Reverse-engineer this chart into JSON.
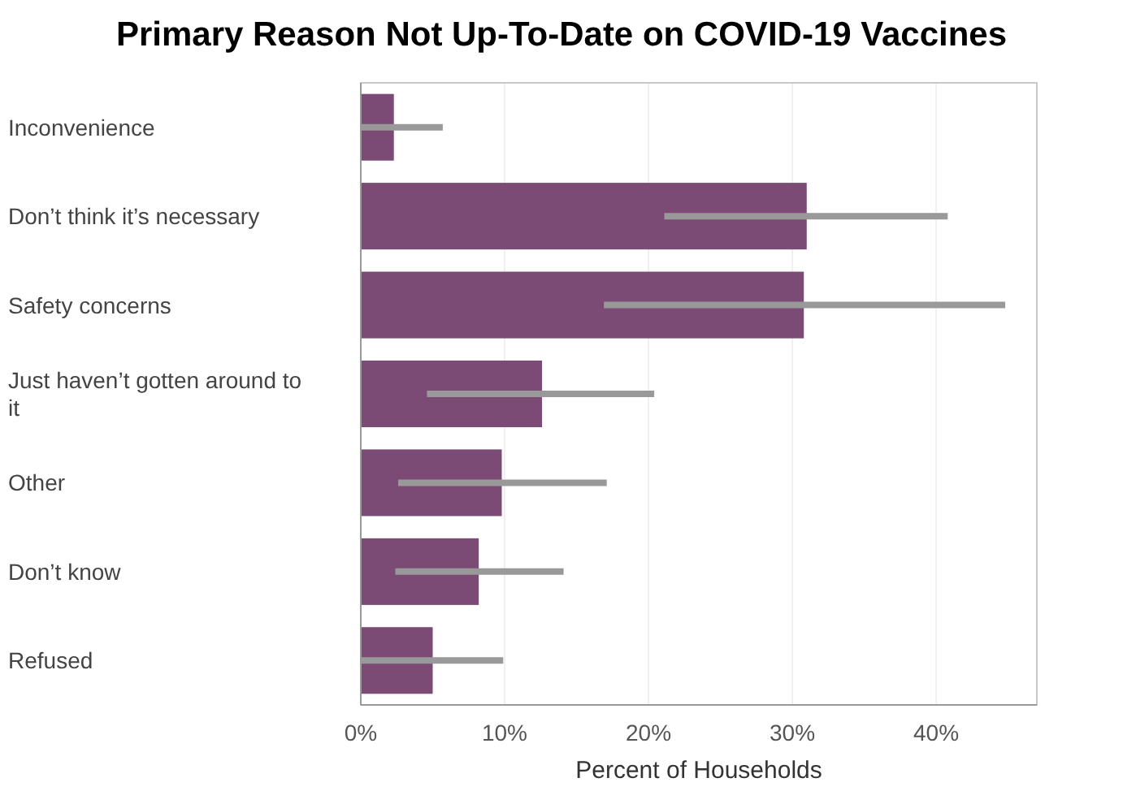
{
  "chart_data": {
    "type": "bar",
    "orientation": "horizontal",
    "title": "Primary Reason Not Up-To-Date on COVID-19 Vaccines",
    "xlabel": "Percent of Households",
    "categories": [
      "Inconvenience",
      "Don’t think it’s necessary",
      "Safety concerns",
      "Just haven’t gotten around to it",
      "Other",
      "Don’t know",
      "Refused"
    ],
    "values": [
      2.3,
      31.0,
      30.8,
      12.6,
      9.8,
      8.2,
      5.0
    ],
    "errors": [
      [
        0,
        5.7
      ],
      [
        21.1,
        40.8
      ],
      [
        16.9,
        44.8
      ],
      [
        4.6,
        20.4
      ],
      [
        2.6,
        17.1
      ],
      [
        2.4,
        14.1
      ],
      [
        0,
        9.9
      ]
    ],
    "color": "#7b4a75",
    "xlim": [
      0,
      47
    ],
    "xticks": [
      {
        "value": 0,
        "label": "0%"
      },
      {
        "value": 10,
        "label": "10%"
      },
      {
        "value": 20,
        "label": "20%"
      },
      {
        "value": 30,
        "label": "30%"
      },
      {
        "value": 40,
        "label": "40%"
      }
    ],
    "grid": "x"
  }
}
